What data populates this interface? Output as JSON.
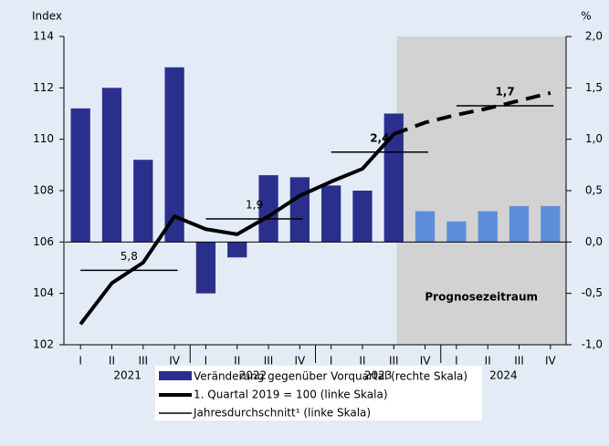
{
  "chart_data": {
    "type": "bar_line",
    "y_label": "Index",
    "y2_label": "%",
    "categories": [
      "I",
      "II",
      "III",
      "IV",
      "I",
      "II",
      "III",
      "IV",
      "I",
      "II",
      "III",
      "IV",
      "I",
      "II",
      "III",
      "IV"
    ],
    "years": [
      "2021",
      "2022",
      "2023",
      "2024"
    ],
    "ylim": [
      102,
      114
    ],
    "yticks": [
      102,
      104,
      106,
      108,
      110,
      112,
      114
    ],
    "y2lim": [
      -1.0,
      2.0
    ],
    "y2ticks": [
      {
        "value": -1.0,
        "label": "-1,0"
      },
      {
        "value": -0.5,
        "label": "-0,5"
      },
      {
        "value": 0.0,
        "label": "0,0"
      },
      {
        "value": 0.5,
        "label": "0,5"
      },
      {
        "value": 1.0,
        "label": "1,0"
      },
      {
        "value": 1.5,
        "label": "1,5"
      },
      {
        "value": 2.0,
        "label": "2,0"
      }
    ],
    "series": [
      {
        "name": "Veränderung gegenüber Vorquartal (rechte Skala)",
        "type": "bar",
        "axis": "y2",
        "color": "#2b2f8c",
        "colors": [
          "#2b2f8c",
          "#2b2f8c",
          "#2b2f8c",
          "#2b2f8c",
          "#2b2f8c",
          "#2b2f8c",
          "#2b2f8c",
          "#2b2f8c",
          "#2b2f8c",
          "#2b2f8c",
          "#2b2f8c",
          "#5b8fd9",
          "#5b8fd9",
          "#5b8fd9",
          "#5b8fd9",
          "#5b8fd9"
        ],
        "values": [
          1.3,
          1.5,
          0.8,
          1.7,
          -0.5,
          -0.15,
          0.65,
          0.63,
          0.55,
          0.5,
          1.25,
          0.3,
          0.2,
          0.3,
          0.35,
          0.35
        ]
      },
      {
        "name": "1. Quartal 2019 = 100 (linke Skala)",
        "type": "line",
        "color": "#000000",
        "values": [
          102.8,
          104.4,
          105.2,
          107.0,
          106.5,
          106.3,
          107.0,
          107.8,
          108.35,
          108.85,
          110.2,
          null,
          null,
          null,
          null,
          null
        ]
      },
      {
        "type": "line",
        "dashed": true,
        "color": "#000000",
        "values": [
          null,
          null,
          null,
          null,
          null,
          null,
          null,
          null,
          null,
          null,
          110.2,
          110.65,
          110.95,
          111.2,
          111.5,
          111.8
        ]
      }
    ],
    "averages": {
      "name": "Jahresdurchschnitt¹ (linke Skala)",
      "values": [
        104.9,
        106.9,
        109.5,
        111.3
      ],
      "growth_labels": [
        "5,8",
        "1,9",
        "2,4",
        "1,7"
      ],
      "bold": [
        false,
        false,
        true,
        true
      ]
    },
    "forecast_label": "Prognosezeitraum"
  }
}
